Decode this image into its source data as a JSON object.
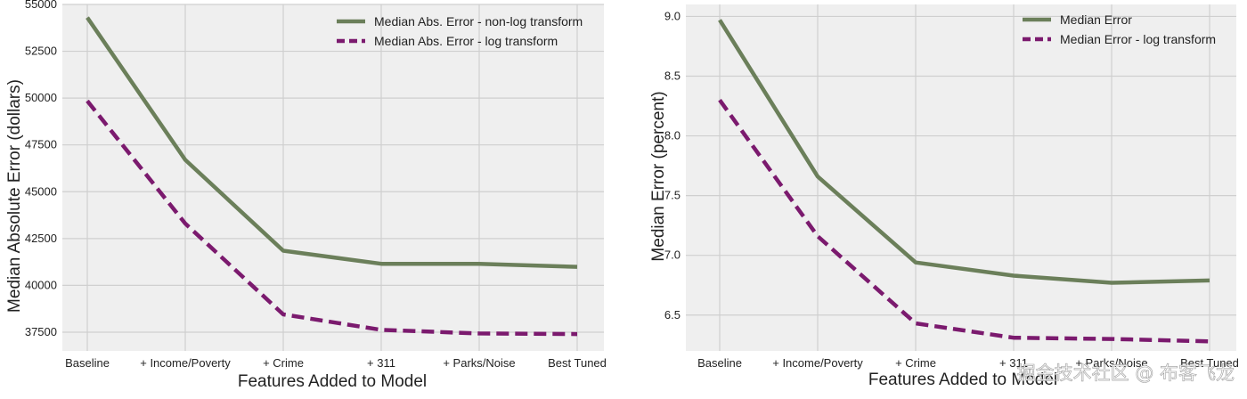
{
  "chart_data": [
    {
      "type": "line",
      "categories": [
        "Baseline",
        "+ Income/Poverty",
        "+ Crime",
        "+ 311",
        "+ Parks/Noise",
        "Best Tuned"
      ],
      "series": [
        {
          "name": "Median Abs. Error - non-log transform",
          "color": "#6b7f5a",
          "style": "solid",
          "values": [
            54300,
            46700,
            41850,
            41150,
            41150,
            40990
          ]
        },
        {
          "name": "Median Abs. Error - log transform",
          "color": "#7b1a6e",
          "style": "dashed",
          "values": [
            49850,
            43300,
            38450,
            37620,
            37430,
            37400
          ]
        }
      ],
      "xlabel": "Features Added to Model",
      "ylabel": "Median Absolute Error (dollars)",
      "ylim": [
        36500,
        55000
      ],
      "yticks": [
        37500,
        40000,
        42500,
        45000,
        47500,
        50000,
        52500,
        55000
      ],
      "legend": "top-right",
      "grid": true
    },
    {
      "type": "line",
      "categories": [
        "Baseline",
        "+ Income/Poverty",
        "+ Crime",
        "+ 311",
        "+ Parks/Noise",
        "Best Tuned"
      ],
      "series": [
        {
          "name": "Median Error",
          "color": "#6b7f5a",
          "style": "solid",
          "values": [
            8.97,
            7.66,
            6.94,
            6.83,
            6.77,
            6.79
          ]
        },
        {
          "name": "Median Error - log transform",
          "color": "#7b1a6e",
          "style": "dashed",
          "values": [
            8.3,
            7.16,
            6.43,
            6.31,
            6.3,
            6.28
          ]
        }
      ],
      "xlabel": "Features Added to Model",
      "ylabel": "Median Error (percent)",
      "ylim": [
        6.2,
        9.1
      ],
      "yticks": [
        6.5,
        7.0,
        7.5,
        8.0,
        8.5,
        9.0
      ],
      "legend": "top-right",
      "grid": true
    }
  ],
  "watermark": "掘金技术社区 @ 布客飞龙"
}
